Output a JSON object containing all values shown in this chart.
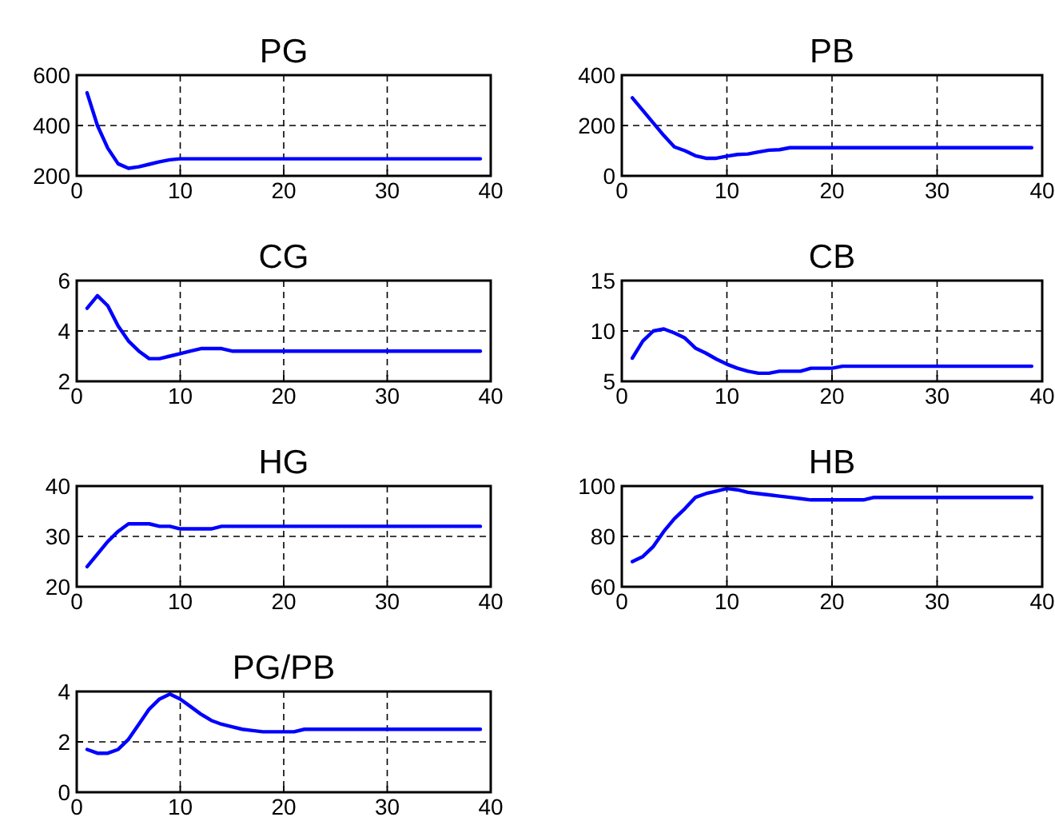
{
  "chart_data": [
    {
      "type": "line",
      "title": "PG",
      "xlim": [
        0,
        40
      ],
      "xticks": [
        0,
        10,
        20,
        30,
        40
      ],
      "ylim": [
        200,
        600
      ],
      "yticks": [
        200,
        400,
        600
      ],
      "grid": true,
      "series": [
        {
          "color": "#0000ff",
          "x": [
            1,
            2,
            3,
            4,
            5,
            6,
            7,
            8,
            9,
            10,
            39
          ],
          "values": [
            530,
            400,
            310,
            248,
            230,
            236,
            246,
            256,
            264,
            268,
            268
          ]
        }
      ]
    },
    {
      "type": "line",
      "title": "PB",
      "xlim": [
        0,
        40
      ],
      "xticks": [
        0,
        10,
        20,
        30,
        40
      ],
      "ylim": [
        0,
        400
      ],
      "yticks": [
        0,
        200,
        400
      ],
      "grid": true,
      "series": [
        {
          "color": "#0000ff",
          "x": [
            1,
            2,
            3,
            4,
            5,
            6,
            7,
            8,
            9,
            10,
            11,
            12,
            13,
            14,
            15,
            16,
            39
          ],
          "values": [
            310,
            260,
            210,
            160,
            115,
            100,
            80,
            70,
            70,
            78,
            85,
            87,
            95,
            102,
            104,
            112,
            112
          ]
        }
      ]
    },
    {
      "type": "line",
      "title": "CG",
      "xlim": [
        0,
        40
      ],
      "xticks": [
        0,
        10,
        20,
        30,
        40
      ],
      "ylim": [
        2,
        6
      ],
      "yticks": [
        2,
        4,
        6
      ],
      "grid": true,
      "series": [
        {
          "color": "#0000ff",
          "x": [
            1,
            2,
            3,
            4,
            5,
            6,
            7,
            8,
            9,
            10,
            11,
            12,
            13,
            14,
            15,
            39
          ],
          "values": [
            4.9,
            5.4,
            5.0,
            4.2,
            3.6,
            3.2,
            2.9,
            2.9,
            3.0,
            3.1,
            3.2,
            3.3,
            3.3,
            3.3,
            3.2,
            3.2
          ]
        }
      ]
    },
    {
      "type": "line",
      "title": "CB",
      "xlim": [
        0,
        40
      ],
      "xticks": [
        0,
        10,
        20,
        30,
        40
      ],
      "ylim": [
        5,
        15
      ],
      "yticks": [
        5,
        10,
        15
      ],
      "grid": true,
      "series": [
        {
          "color": "#0000ff",
          "x": [
            1,
            2,
            3,
            4,
            5,
            6,
            7,
            8,
            9,
            10,
            11,
            12,
            13,
            14,
            15,
            17,
            18,
            20,
            21,
            39
          ],
          "values": [
            7.3,
            9.0,
            10.0,
            10.2,
            9.8,
            9.3,
            8.3,
            7.8,
            7.2,
            6.7,
            6.3,
            6.0,
            5.8,
            5.8,
            6.0,
            6.0,
            6.3,
            6.3,
            6.5,
            6.5
          ]
        }
      ]
    },
    {
      "type": "line",
      "title": "HG",
      "xlim": [
        0,
        40
      ],
      "xticks": [
        0,
        10,
        20,
        30,
        40
      ],
      "ylim": [
        20,
        40
      ],
      "yticks": [
        20,
        30,
        40
      ],
      "grid": true,
      "series": [
        {
          "color": "#0000ff",
          "x": [
            1,
            2,
            3,
            4,
            5,
            6,
            7,
            8,
            9,
            10,
            13,
            14,
            39
          ],
          "values": [
            24,
            26.5,
            29,
            31,
            32.5,
            32.5,
            32.5,
            32,
            32,
            31.5,
            31.5,
            32,
            32
          ]
        }
      ]
    },
    {
      "type": "line",
      "title": "HB",
      "xlim": [
        0,
        40
      ],
      "xticks": [
        0,
        10,
        20,
        30,
        40
      ],
      "ylim": [
        60,
        100
      ],
      "yticks": [
        60,
        80,
        100
      ],
      "grid": true,
      "series": [
        {
          "color": "#0000ff",
          "x": [
            1,
            2,
            3,
            4,
            5,
            6,
            7,
            8,
            9,
            10,
            11,
            12,
            13,
            14,
            15,
            16,
            17,
            18,
            23,
            24,
            39
          ],
          "values": [
            70,
            72,
            76,
            82,
            87,
            91,
            95.5,
            97,
            98,
            99,
            98.5,
            97.5,
            97,
            96.5,
            96,
            95.5,
            95,
            94.5,
            94.5,
            95.5,
            95.5
          ]
        }
      ]
    },
    {
      "type": "line",
      "title": "PG/PB",
      "xlim": [
        0,
        40
      ],
      "xticks": [
        0,
        10,
        20,
        30,
        40
      ],
      "ylim": [
        0,
        4
      ],
      "yticks": [
        0,
        2,
        4
      ],
      "grid": true,
      "series": [
        {
          "color": "#0000ff",
          "x": [
            1,
            2,
            3,
            4,
            5,
            6,
            7,
            8,
            9,
            10,
            11,
            12,
            13,
            14,
            15,
            16,
            17,
            18,
            21,
            22,
            39
          ],
          "values": [
            1.7,
            1.55,
            1.55,
            1.7,
            2.1,
            2.7,
            3.3,
            3.7,
            3.9,
            3.7,
            3.4,
            3.1,
            2.85,
            2.7,
            2.6,
            2.5,
            2.45,
            2.4,
            2.4,
            2.5,
            2.5
          ]
        }
      ]
    }
  ]
}
